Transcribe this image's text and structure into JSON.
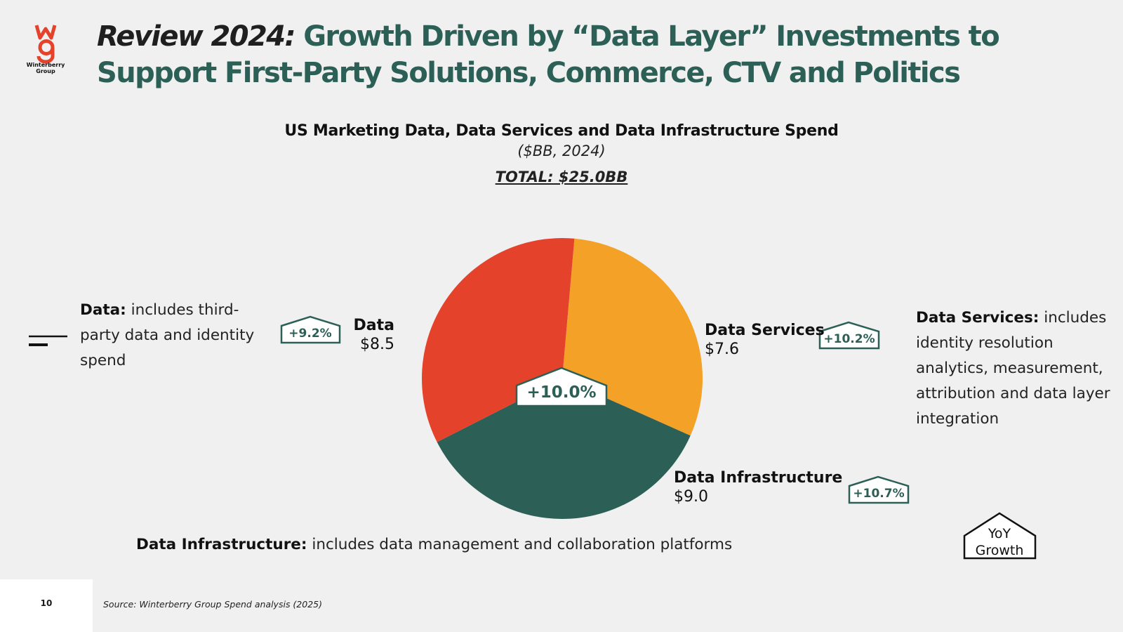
{
  "logo": {
    "line1": "Winterberry",
    "line2": "Group"
  },
  "title": {
    "lead": "Review 2024:",
    "rest": "Growth Driven by “Data Layer” Investments to Support First-Party Solutions, Commerce, CTV and Politics"
  },
  "chart_data": {
    "type": "pie",
    "title": "US Marketing Data, Data Services and Data Infrastructure Spend",
    "subtitle": "($BB, 2024)",
    "total_label": "TOTAL: $25.0BB",
    "center_badge": "+10.0%",
    "segments": [
      {
        "name": "Data Services",
        "value": 7.6,
        "value_label": "$7.6",
        "yoy": "+10.2%",
        "color": "#f4a127"
      },
      {
        "name": "Data Infrastructure",
        "value": 9.0,
        "value_label": "$9.0",
        "yoy": "+10.7%",
        "color": "#2c5f56"
      },
      {
        "name": "Data",
        "value": 8.5,
        "value_label": "$8.5",
        "yoy": "+9.2%",
        "color": "#e5422b"
      }
    ]
  },
  "descriptions": {
    "data": {
      "term": "Data:",
      "text": "includes third-party data and identity spend"
    },
    "services": {
      "term": "Data Services:",
      "text": "includes identity resolution analytics, measurement, attribution and data layer integration"
    },
    "infrastructure": {
      "term": "Data Infrastructure:",
      "text": "includes data management and collaboration platforms"
    }
  },
  "legend": {
    "line1": "YoY",
    "line2": "Growth"
  },
  "footer": {
    "page": "10",
    "source": "Source: Winterberry Group Spend analysis (2025)"
  },
  "colors": {
    "accent": "#2c5f56",
    "red": "#e5422b",
    "orange": "#f4a127",
    "background": "#f0f0f0"
  }
}
